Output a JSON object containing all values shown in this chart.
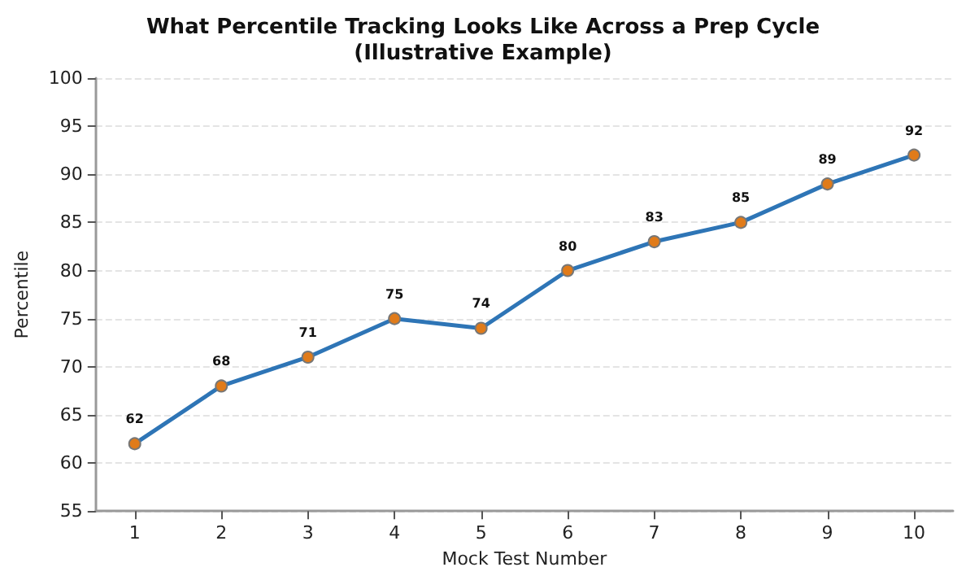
{
  "chart_data": {
    "type": "line",
    "title": "What Percentile Tracking Looks Like Across a Prep Cycle\n(Illustrative Example)",
    "xlabel": "Mock Test Number",
    "ylabel": "Percentile",
    "x": [
      1,
      2,
      3,
      4,
      5,
      6,
      7,
      8,
      9,
      10
    ],
    "series": [
      {
        "color": "#2e75b6",
        "values": [
          62,
          68,
          71,
          75,
          74,
          80,
          83,
          85,
          89,
          92
        ]
      }
    ],
    "xlim": [
      0.55,
      10.45
    ],
    "xticks": [
      1,
      2,
      3,
      4,
      5,
      6,
      7,
      8,
      9,
      10
    ],
    "ylim": [
      55,
      100
    ],
    "yticks": [
      55,
      60,
      65,
      70,
      75,
      80,
      85,
      90,
      95,
      100
    ],
    "grid": "y",
    "marker": "circle",
    "line_style": "solid",
    "data_labels": true
  }
}
